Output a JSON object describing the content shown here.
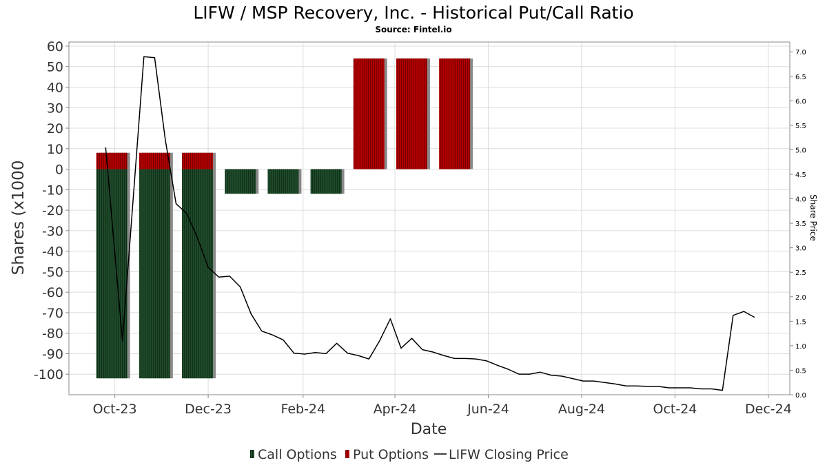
{
  "title": "LIFW / MSP Recovery, Inc. - Historical Put/Call Ratio",
  "subtitle": "Source: Fintel.io",
  "colors": {
    "call": "#1f4a2a",
    "call_stripe": "#0f3018",
    "put": "#b00000",
    "put_stripe": "#7a0000",
    "shadow": "#8a8a8a",
    "price_line": "#000000",
    "grid": "#dcdcdc",
    "axis": "#888888"
  },
  "legend": [
    {
      "label": "Call Options",
      "icon": "call-swatch"
    },
    {
      "label": "Put Options",
      "icon": "put-swatch"
    },
    {
      "label": "LIFW Closing Price",
      "icon": "line-swatch"
    }
  ],
  "chart_data": {
    "type": "bar",
    "xlabel": "Date",
    "ylabel": "Shares (x1000",
    "y2label": "Share Price",
    "x_ticks": [
      "Oct-23",
      "Dec-23",
      "Feb-24",
      "Apr-24",
      "Jun-24",
      "Aug-24",
      "Oct-24",
      "Dec-24"
    ],
    "x_tick_dates": [
      "2023-10-01",
      "2023-12-01",
      "2024-02-01",
      "2024-04-01",
      "2024-06-01",
      "2024-08-01",
      "2024-10-01",
      "2024-12-01"
    ],
    "xlim": [
      "2023-09-01",
      "2024-12-15"
    ],
    "ylim": [
      -110,
      62
    ],
    "y_ticks": [
      60,
      50,
      40,
      30,
      20,
      10,
      0,
      -10,
      -20,
      -30,
      -40,
      -50,
      -60,
      -70,
      -80,
      -90,
      -100
    ],
    "y2lim": [
      0.0,
      7.2
    ],
    "y2_ticks": [
      "7.0",
      "6.5",
      "6.0",
      "5.5",
      "5.0",
      "4.5",
      "4.0",
      "3.5",
      "3.0",
      "2.5",
      "2.0",
      "1.5",
      "1.0",
      "0.5",
      "0.0"
    ],
    "grid": true,
    "legend_position": "bottom",
    "bars": [
      {
        "date": "2023-09-29",
        "calls": -102,
        "puts": 8
      },
      {
        "date": "2023-10-27",
        "calls": -102,
        "puts": 8
      },
      {
        "date": "2023-11-24",
        "calls": -102,
        "puts": 8
      },
      {
        "date": "2023-12-22",
        "calls": -12,
        "puts": 0
      },
      {
        "date": "2024-01-19",
        "calls": -12,
        "puts": 0
      },
      {
        "date": "2024-02-16",
        "calls": -12,
        "puts": 0
      },
      {
        "date": "2024-03-15",
        "calls": 0,
        "puts": 54
      },
      {
        "date": "2024-04-12",
        "calls": 0,
        "puts": 54
      },
      {
        "date": "2024-05-10",
        "calls": 0,
        "puts": 54
      }
    ],
    "series": [
      {
        "name": "LIFW Closing Price",
        "axis": "right",
        "points": [
          [
            "2023-09-25",
            5.05
          ],
          [
            "2023-10-06",
            1.1
          ],
          [
            "2023-10-20",
            6.9
          ],
          [
            "2023-10-27",
            6.88
          ],
          [
            "2023-11-03",
            5.2
          ],
          [
            "2023-11-10",
            3.9
          ],
          [
            "2023-11-17",
            3.7
          ],
          [
            "2023-11-24",
            3.2
          ],
          [
            "2023-12-01",
            2.6
          ],
          [
            "2023-12-08",
            2.4
          ],
          [
            "2023-12-15",
            2.42
          ],
          [
            "2023-12-22",
            2.2
          ],
          [
            "2023-12-29",
            1.65
          ],
          [
            "2024-01-05",
            1.3
          ],
          [
            "2024-01-12",
            1.22
          ],
          [
            "2024-01-19",
            1.12
          ],
          [
            "2024-01-26",
            0.85
          ],
          [
            "2024-02-02",
            0.83
          ],
          [
            "2024-02-09",
            0.86
          ],
          [
            "2024-02-16",
            0.84
          ],
          [
            "2024-02-23",
            1.05
          ],
          [
            "2024-03-01",
            0.85
          ],
          [
            "2024-03-08",
            0.8
          ],
          [
            "2024-03-15",
            0.73
          ],
          [
            "2024-03-22",
            1.1
          ],
          [
            "2024-03-29",
            1.55
          ],
          [
            "2024-04-05",
            0.95
          ],
          [
            "2024-04-12",
            1.15
          ],
          [
            "2024-04-19",
            0.92
          ],
          [
            "2024-04-26",
            0.87
          ],
          [
            "2024-05-03",
            0.8
          ],
          [
            "2024-05-10",
            0.74
          ],
          [
            "2024-05-17",
            0.74
          ],
          [
            "2024-05-24",
            0.73
          ],
          [
            "2024-05-31",
            0.69
          ],
          [
            "2024-06-07",
            0.6
          ],
          [
            "2024-06-14",
            0.52
          ],
          [
            "2024-06-21",
            0.42
          ],
          [
            "2024-06-28",
            0.42
          ],
          [
            "2024-07-05",
            0.46
          ],
          [
            "2024-07-12",
            0.4
          ],
          [
            "2024-07-19",
            0.38
          ],
          [
            "2024-07-26",
            0.33
          ],
          [
            "2024-08-02",
            0.28
          ],
          [
            "2024-08-09",
            0.28
          ],
          [
            "2024-08-16",
            0.25
          ],
          [
            "2024-08-23",
            0.22
          ],
          [
            "2024-08-30",
            0.18
          ],
          [
            "2024-09-06",
            0.18
          ],
          [
            "2024-09-13",
            0.17
          ],
          [
            "2024-09-20",
            0.17
          ],
          [
            "2024-09-27",
            0.14
          ],
          [
            "2024-10-04",
            0.14
          ],
          [
            "2024-10-11",
            0.14
          ],
          [
            "2024-10-18",
            0.12
          ],
          [
            "2024-10-25",
            0.12
          ],
          [
            "2024-11-01",
            0.09
          ],
          [
            "2024-11-08",
            1.62
          ],
          [
            "2024-11-15",
            1.7
          ],
          [
            "2024-11-22",
            1.58
          ]
        ]
      }
    ]
  }
}
